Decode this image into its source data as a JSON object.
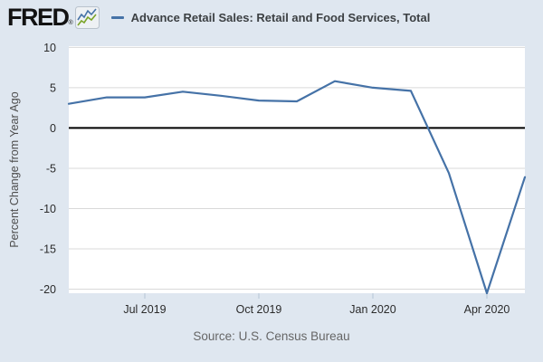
{
  "header": {
    "logo_text": "FRED",
    "registered_mark": "®",
    "legend": {
      "series_title": "Advance Retail Sales: Retail and Food Services, Total",
      "series_color": "#4572a7"
    }
  },
  "chart_data": {
    "type": "line",
    "title": "Advance Retail Sales: Retail and Food Services, Total",
    "ylabel": "Percent Change from Year Ago",
    "xlabel": "",
    "x": [
      "May 2019",
      "Jun 2019",
      "Jul 2019",
      "Aug 2019",
      "Sep 2019",
      "Oct 2019",
      "Nov 2019",
      "Dec 2019",
      "Jan 2020",
      "Feb 2020",
      "Mar 2020",
      "Apr 2020",
      "May 2020"
    ],
    "values": [
      3.0,
      3.8,
      3.8,
      4.5,
      4.0,
      3.4,
      3.3,
      5.8,
      5.0,
      4.6,
      -5.6,
      -20.5,
      -6.1
    ],
    "ylim": [
      -20.5,
      10.15
    ],
    "yticks": [
      10,
      5,
      0,
      -5,
      -10,
      -15,
      -20
    ],
    "xtick_labels": [
      "Jul 2019",
      "Oct 2019",
      "Jan 2020",
      "Apr 2020"
    ],
    "xtick_indices": [
      2,
      5,
      8,
      11
    ],
    "grid": "horizontal",
    "zero_line": true,
    "legend_position": "top",
    "line_color": "#4572a7"
  },
  "footer": {
    "source": "Source: U.S. Census Bureau"
  },
  "colors": {
    "background": "#dfe7f0",
    "plot_background": "#ffffff",
    "gridline": "#d9d9d9",
    "zero_line": "#000000",
    "line": "#4572a7",
    "x_tick_mark": "#b6c5d6",
    "tick_label": "#2b2b2b",
    "axis_title": "#4d4d4d",
    "source_text": "#666666",
    "logo_icon_blue": "#4572a7",
    "logo_icon_green": "#7ba428"
  }
}
